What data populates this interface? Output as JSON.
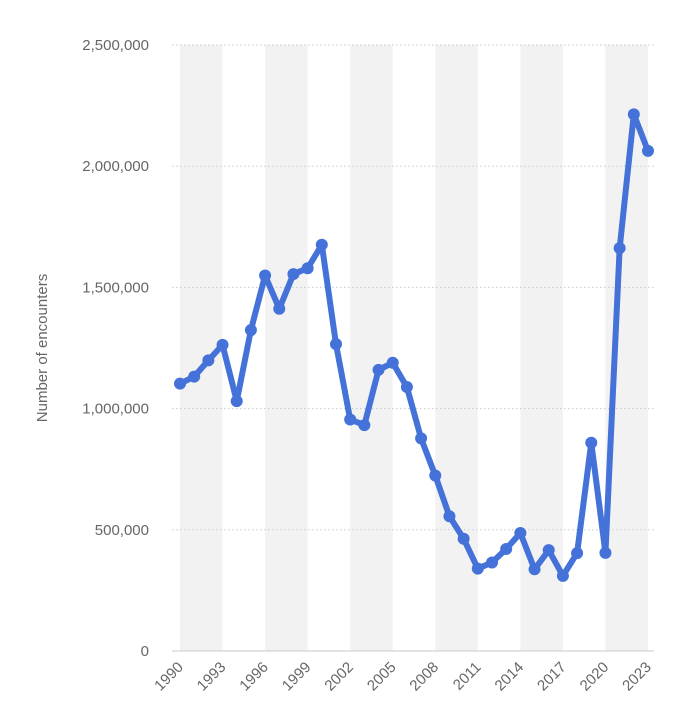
{
  "chart_data": {
    "type": "line",
    "ylabel": "Number of encounters",
    "ylim": [
      0,
      2500000
    ],
    "yticks": [
      0,
      500000,
      1000000,
      1500000,
      2000000,
      2500000
    ],
    "ytick_labels": [
      "0",
      "500,000",
      "1,000,000",
      "1,500,000",
      "2,000,000",
      "2,500,000"
    ],
    "xlim": [
      1990,
      2023
    ],
    "xticks": [
      1990,
      1993,
      1996,
      1999,
      2002,
      2005,
      2008,
      2011,
      2014,
      2017,
      2020,
      2023
    ],
    "xtick_labels": [
      "1990",
      "1993",
      "1996",
      "1999",
      "2002",
      "2005",
      "2008",
      "2011",
      "2014",
      "2017",
      "2020",
      "2023"
    ],
    "grid": true,
    "series_color": "#4472d9",
    "x": [
      1990,
      1991,
      1992,
      1993,
      1994,
      1995,
      1996,
      1997,
      1998,
      1999,
      2000,
      2001,
      2002,
      2003,
      2004,
      2005,
      2006,
      2007,
      2008,
      2009,
      2010,
      2011,
      2012,
      2013,
      2014,
      2015,
      2016,
      2017,
      2018,
      2019,
      2020,
      2021,
      2022,
      2023
    ],
    "series": [
      {
        "values": [
          1103000,
          1132000,
          1199000,
          1263000,
          1031000,
          1324000,
          1549000,
          1412000,
          1555000,
          1579000,
          1676000,
          1266000,
          955000,
          932000,
          1160000,
          1189000,
          1089000,
          877000,
          724000,
          556000,
          463000,
          340000,
          365000,
          421000,
          487000,
          337000,
          416000,
          310000,
          404000,
          859000,
          405000,
          1662000,
          2214000,
          2063000
        ]
      }
    ]
  }
}
